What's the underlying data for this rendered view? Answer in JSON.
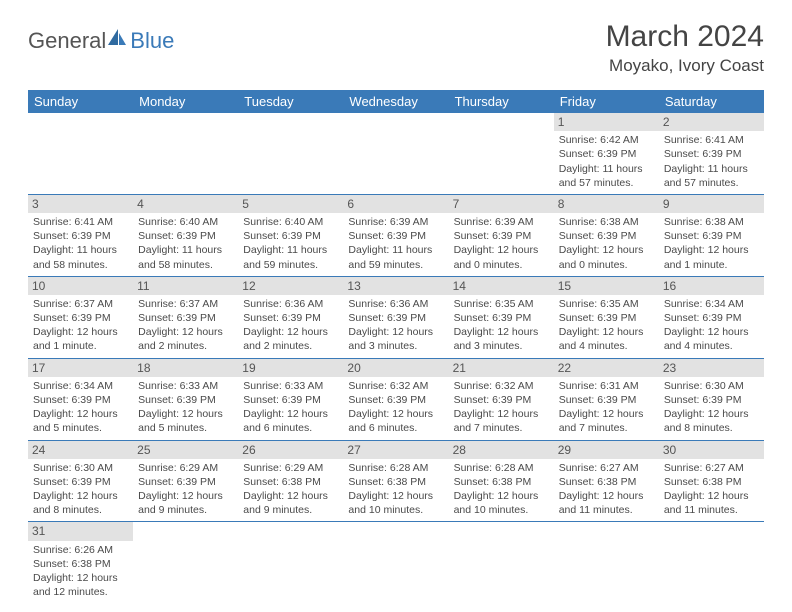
{
  "brand": {
    "part1": "General",
    "part2": "Blue"
  },
  "title": {
    "month_year": "March 2024",
    "location": "Moyako, Ivory Coast"
  },
  "colors": {
    "header_bg": "#3a7ab8",
    "header_text": "#ffffff",
    "daynum_bg": "#e2e2e2",
    "text": "#4a4a4a",
    "row_border": "#3a7ab8"
  },
  "weekdays": [
    "Sunday",
    "Monday",
    "Tuesday",
    "Wednesday",
    "Thursday",
    "Friday",
    "Saturday"
  ],
  "cells": [
    null,
    null,
    null,
    null,
    null,
    {
      "day": "1",
      "sunrise": "Sunrise: 6:42 AM",
      "sunset": "Sunset: 6:39 PM",
      "daylight": "Daylight: 11 hours and 57 minutes."
    },
    {
      "day": "2",
      "sunrise": "Sunrise: 6:41 AM",
      "sunset": "Sunset: 6:39 PM",
      "daylight": "Daylight: 11 hours and 57 minutes."
    },
    {
      "day": "3",
      "sunrise": "Sunrise: 6:41 AM",
      "sunset": "Sunset: 6:39 PM",
      "daylight": "Daylight: 11 hours and 58 minutes."
    },
    {
      "day": "4",
      "sunrise": "Sunrise: 6:40 AM",
      "sunset": "Sunset: 6:39 PM",
      "daylight": "Daylight: 11 hours and 58 minutes."
    },
    {
      "day": "5",
      "sunrise": "Sunrise: 6:40 AM",
      "sunset": "Sunset: 6:39 PM",
      "daylight": "Daylight: 11 hours and 59 minutes."
    },
    {
      "day": "6",
      "sunrise": "Sunrise: 6:39 AM",
      "sunset": "Sunset: 6:39 PM",
      "daylight": "Daylight: 11 hours and 59 minutes."
    },
    {
      "day": "7",
      "sunrise": "Sunrise: 6:39 AM",
      "sunset": "Sunset: 6:39 PM",
      "daylight": "Daylight: 12 hours and 0 minutes."
    },
    {
      "day": "8",
      "sunrise": "Sunrise: 6:38 AM",
      "sunset": "Sunset: 6:39 PM",
      "daylight": "Daylight: 12 hours and 0 minutes."
    },
    {
      "day": "9",
      "sunrise": "Sunrise: 6:38 AM",
      "sunset": "Sunset: 6:39 PM",
      "daylight": "Daylight: 12 hours and 1 minute."
    },
    {
      "day": "10",
      "sunrise": "Sunrise: 6:37 AM",
      "sunset": "Sunset: 6:39 PM",
      "daylight": "Daylight: 12 hours and 1 minute."
    },
    {
      "day": "11",
      "sunrise": "Sunrise: 6:37 AM",
      "sunset": "Sunset: 6:39 PM",
      "daylight": "Daylight: 12 hours and 2 minutes."
    },
    {
      "day": "12",
      "sunrise": "Sunrise: 6:36 AM",
      "sunset": "Sunset: 6:39 PM",
      "daylight": "Daylight: 12 hours and 2 minutes."
    },
    {
      "day": "13",
      "sunrise": "Sunrise: 6:36 AM",
      "sunset": "Sunset: 6:39 PM",
      "daylight": "Daylight: 12 hours and 3 minutes."
    },
    {
      "day": "14",
      "sunrise": "Sunrise: 6:35 AM",
      "sunset": "Sunset: 6:39 PM",
      "daylight": "Daylight: 12 hours and 3 minutes."
    },
    {
      "day": "15",
      "sunrise": "Sunrise: 6:35 AM",
      "sunset": "Sunset: 6:39 PM",
      "daylight": "Daylight: 12 hours and 4 minutes."
    },
    {
      "day": "16",
      "sunrise": "Sunrise: 6:34 AM",
      "sunset": "Sunset: 6:39 PM",
      "daylight": "Daylight: 12 hours and 4 minutes."
    },
    {
      "day": "17",
      "sunrise": "Sunrise: 6:34 AM",
      "sunset": "Sunset: 6:39 PM",
      "daylight": "Daylight: 12 hours and 5 minutes."
    },
    {
      "day": "18",
      "sunrise": "Sunrise: 6:33 AM",
      "sunset": "Sunset: 6:39 PM",
      "daylight": "Daylight: 12 hours and 5 minutes."
    },
    {
      "day": "19",
      "sunrise": "Sunrise: 6:33 AM",
      "sunset": "Sunset: 6:39 PM",
      "daylight": "Daylight: 12 hours and 6 minutes."
    },
    {
      "day": "20",
      "sunrise": "Sunrise: 6:32 AM",
      "sunset": "Sunset: 6:39 PM",
      "daylight": "Daylight: 12 hours and 6 minutes."
    },
    {
      "day": "21",
      "sunrise": "Sunrise: 6:32 AM",
      "sunset": "Sunset: 6:39 PM",
      "daylight": "Daylight: 12 hours and 7 minutes."
    },
    {
      "day": "22",
      "sunrise": "Sunrise: 6:31 AM",
      "sunset": "Sunset: 6:39 PM",
      "daylight": "Daylight: 12 hours and 7 minutes."
    },
    {
      "day": "23",
      "sunrise": "Sunrise: 6:30 AM",
      "sunset": "Sunset: 6:39 PM",
      "daylight": "Daylight: 12 hours and 8 minutes."
    },
    {
      "day": "24",
      "sunrise": "Sunrise: 6:30 AM",
      "sunset": "Sunset: 6:39 PM",
      "daylight": "Daylight: 12 hours and 8 minutes."
    },
    {
      "day": "25",
      "sunrise": "Sunrise: 6:29 AM",
      "sunset": "Sunset: 6:39 PM",
      "daylight": "Daylight: 12 hours and 9 minutes."
    },
    {
      "day": "26",
      "sunrise": "Sunrise: 6:29 AM",
      "sunset": "Sunset: 6:38 PM",
      "daylight": "Daylight: 12 hours and 9 minutes."
    },
    {
      "day": "27",
      "sunrise": "Sunrise: 6:28 AM",
      "sunset": "Sunset: 6:38 PM",
      "daylight": "Daylight: 12 hours and 10 minutes."
    },
    {
      "day": "28",
      "sunrise": "Sunrise: 6:28 AM",
      "sunset": "Sunset: 6:38 PM",
      "daylight": "Daylight: 12 hours and 10 minutes."
    },
    {
      "day": "29",
      "sunrise": "Sunrise: 6:27 AM",
      "sunset": "Sunset: 6:38 PM",
      "daylight": "Daylight: 12 hours and 11 minutes."
    },
    {
      "day": "30",
      "sunrise": "Sunrise: 6:27 AM",
      "sunset": "Sunset: 6:38 PM",
      "daylight": "Daylight: 12 hours and 11 minutes."
    },
    {
      "day": "31",
      "sunrise": "Sunrise: 6:26 AM",
      "sunset": "Sunset: 6:38 PM",
      "daylight": "Daylight: 12 hours and 12 minutes."
    },
    null,
    null,
    null,
    null,
    null,
    null
  ]
}
